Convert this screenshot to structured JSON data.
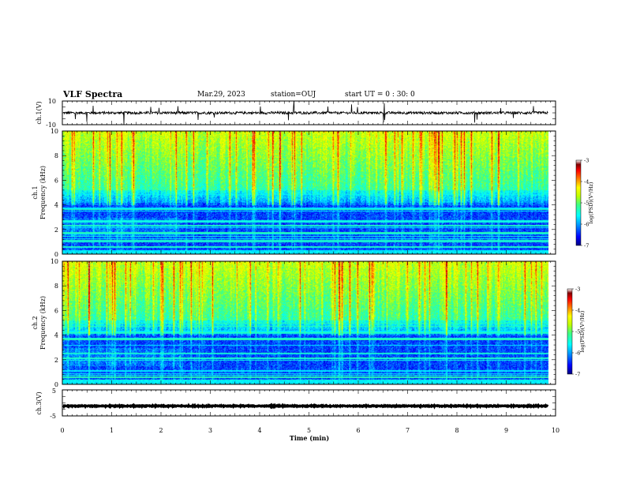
{
  "header": {
    "title": "VLF Spectra",
    "date": "Mar.29, 2023",
    "station": "station=OUJ",
    "start": "start UT =  0 : 30: 0"
  },
  "chart_data": [
    {
      "type": "line",
      "panel": "ch1-waveform",
      "ylabel": "ch.1(V)",
      "ylim": [
        -10,
        10
      ],
      "yticks": [
        "10",
        "-10"
      ],
      "xlim": [
        0,
        10
      ],
      "baseline": 0,
      "grid": false
    },
    {
      "type": "heatmap",
      "panel": "ch1-spectrogram",
      "ylabel": "ch.1 Frequency (kHz)",
      "ylabel_line1": "ch.1",
      "ylabel_line2": "Frequency (kHz)",
      "ylim": [
        0,
        10
      ],
      "yticks": [
        "0",
        "2",
        "4",
        "6",
        "8",
        "10"
      ],
      "xlim": [
        0,
        10
      ],
      "data_end": 9.85,
      "colorbar": {
        "label": "log(PSD)(V²/Hz)",
        "range": [
          -7,
          -3
        ],
        "ticks": [
          "-3",
          "-4",
          "-5",
          "-6",
          "-7"
        ],
        "colormap": [
          "#000080",
          "#0000ff",
          "#00a0ff",
          "#00ffff",
          "#40ff80",
          "#c0ff00",
          "#ffff00",
          "#ff8000",
          "#ff0000",
          "#800000",
          "#ffffff"
        ]
      }
    },
    {
      "type": "heatmap",
      "panel": "ch2-spectrogram",
      "ylabel": "ch.2 Frequency (kHz)",
      "ylabel_line1": "ch.2",
      "ylabel_line2": "Frequency (kHz)",
      "ylim": [
        0,
        10
      ],
      "yticks": [
        "0",
        "2",
        "4",
        "6",
        "8",
        "10"
      ],
      "xlim": [
        0,
        10
      ],
      "data_end": 9.85,
      "colorbar": {
        "label": "log(PSD)(V²/Hz)",
        "range": [
          -7,
          -3
        ],
        "ticks": [
          "-3",
          "-4",
          "-5",
          "-6",
          "-7"
        ],
        "colormap": [
          "#000080",
          "#0000ff",
          "#00a0ff",
          "#00ffff",
          "#40ff80",
          "#c0ff00",
          "#ffff00",
          "#ff8000",
          "#ff0000",
          "#800000",
          "#ffffff"
        ]
      }
    },
    {
      "type": "line",
      "panel": "ch3-waveform",
      "ylabel": "ch.3(V)",
      "ylim": [
        -5,
        5
      ],
      "yticks": [
        "5",
        "-5"
      ],
      "xlim": [
        0,
        10
      ],
      "baseline": -1.2,
      "xlabel": "Time (min)",
      "xticks": [
        "0",
        "1",
        "2",
        "3",
        "4",
        "5",
        "6",
        "7",
        "8",
        "9",
        "10"
      ],
      "grid": false
    }
  ]
}
